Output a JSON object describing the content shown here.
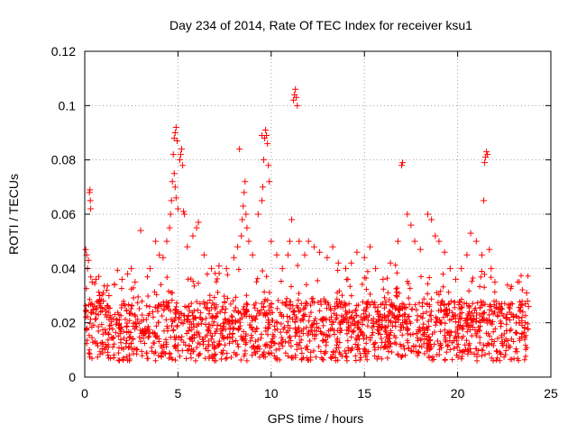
{
  "chart_data": {
    "type": "scatter",
    "title": "Day 234 of 2014, Rate Of TEC Index for receiver ksu1",
    "xlabel": "GPS time / hours",
    "ylabel": "ROTI / TECUs",
    "xlim": [
      0,
      25
    ],
    "ylim": [
      0,
      0.12
    ],
    "xticks": [
      0,
      5,
      10,
      15,
      20,
      25
    ],
    "xtick_labels": [
      "0",
      "5",
      "10",
      "15",
      "20",
      "25"
    ],
    "yticks": [
      0,
      0.02,
      0.04,
      0.06,
      0.08,
      0.1,
      0.12
    ],
    "ytick_labels": [
      "0",
      "0.02",
      "0.04",
      "0.06",
      "0.08",
      "0.1",
      "0.12"
    ],
    "grid": true,
    "marker": "+",
    "color": "#ff0000",
    "series": [
      {
        "name": "ROTI",
        "points": [
          [
            0.05,
            0.047
          ],
          [
            0.1,
            0.045
          ],
          [
            0.15,
            0.04
          ],
          [
            0.2,
            0.043
          ],
          [
            0.25,
            0.068
          ],
          [
            0.28,
            0.069
          ],
          [
            0.3,
            0.065
          ],
          [
            0.32,
            0.062
          ],
          [
            0.4,
            0.035
          ],
          [
            0.6,
            0.036
          ],
          [
            0.8,
            0.03
          ],
          [
            1.0,
            0.028
          ],
          [
            1.3,
            0.03
          ],
          [
            1.6,
            0.034
          ],
          [
            2.0,
            0.036
          ],
          [
            2.3,
            0.038
          ],
          [
            2.5,
            0.04
          ],
          [
            2.7,
            0.035
          ],
          [
            3.0,
            0.054
          ],
          [
            3.5,
            0.04
          ],
          [
            3.8,
            0.05
          ],
          [
            4.0,
            0.045
          ],
          [
            4.2,
            0.044
          ],
          [
            4.4,
            0.05
          ],
          [
            4.55,
            0.055
          ],
          [
            4.6,
            0.06
          ],
          [
            4.65,
            0.065
          ],
          [
            4.7,
            0.072
          ],
          [
            4.75,
            0.082
          ],
          [
            4.8,
            0.088
          ],
          [
            4.85,
            0.09
          ],
          [
            4.9,
            0.092
          ],
          [
            4.95,
            0.087
          ],
          [
            4.8,
            0.075
          ],
          [
            4.85,
            0.07
          ],
          [
            4.9,
            0.066
          ],
          [
            5.0,
            0.062
          ],
          [
            5.1,
            0.08
          ],
          [
            5.15,
            0.082
          ],
          [
            5.2,
            0.084
          ],
          [
            5.25,
            0.078
          ],
          [
            5.3,
            0.061
          ],
          [
            5.35,
            0.06
          ],
          [
            5.5,
            0.048
          ],
          [
            5.8,
            0.052
          ],
          [
            6.0,
            0.055
          ],
          [
            6.1,
            0.057
          ],
          [
            6.4,
            0.045
          ],
          [
            6.8,
            0.04
          ],
          [
            7.2,
            0.041
          ],
          [
            7.6,
            0.04
          ],
          [
            8.0,
            0.044
          ],
          [
            8.2,
            0.048
          ],
          [
            8.4,
            0.052
          ],
          [
            8.45,
            0.058
          ],
          [
            8.5,
            0.063
          ],
          [
            8.55,
            0.068
          ],
          [
            8.6,
            0.072
          ],
          [
            8.65,
            0.06
          ],
          [
            8.7,
            0.055
          ],
          [
            8.3,
            0.084
          ],
          [
            8.8,
            0.05
          ],
          [
            9.0,
            0.045
          ],
          [
            9.3,
            0.06
          ],
          [
            9.5,
            0.065
          ],
          [
            9.55,
            0.07
          ],
          [
            9.6,
            0.08
          ],
          [
            9.65,
            0.088
          ],
          [
            9.7,
            0.091
          ],
          [
            9.75,
            0.089
          ],
          [
            9.8,
            0.086
          ],
          [
            9.85,
            0.078
          ],
          [
            9.9,
            0.072
          ],
          [
            9.5,
            0.089
          ],
          [
            10.0,
            0.05
          ],
          [
            10.3,
            0.045
          ],
          [
            10.6,
            0.04
          ],
          [
            10.9,
            0.045
          ],
          [
            11.0,
            0.05
          ],
          [
            11.1,
            0.058
          ],
          [
            11.2,
            0.102
          ],
          [
            11.25,
            0.104
          ],
          [
            11.3,
            0.106
          ],
          [
            11.35,
            0.103
          ],
          [
            11.4,
            0.1
          ],
          [
            11.5,
            0.05
          ],
          [
            11.8,
            0.045
          ],
          [
            12.0,
            0.05
          ],
          [
            12.3,
            0.048
          ],
          [
            12.6,
            0.046
          ],
          [
            13.0,
            0.044
          ],
          [
            13.3,
            0.048
          ],
          [
            13.6,
            0.042
          ],
          [
            14.0,
            0.04
          ],
          [
            14.3,
            0.042
          ],
          [
            14.6,
            0.046
          ],
          [
            15.0,
            0.044
          ],
          [
            15.3,
            0.048
          ],
          [
            15.6,
            0.04
          ],
          [
            16.0,
            0.036
          ],
          [
            16.4,
            0.042
          ],
          [
            16.8,
            0.05
          ],
          [
            17.0,
            0.078
          ],
          [
            17.05,
            0.079
          ],
          [
            17.3,
            0.06
          ],
          [
            17.5,
            0.056
          ],
          [
            17.7,
            0.05
          ],
          [
            18.0,
            0.047
          ],
          [
            18.4,
            0.06
          ],
          [
            18.6,
            0.058
          ],
          [
            18.8,
            0.052
          ],
          [
            19.0,
            0.05
          ],
          [
            19.3,
            0.046
          ],
          [
            19.6,
            0.04
          ],
          [
            19.9,
            0.036
          ],
          [
            20.2,
            0.04
          ],
          [
            20.5,
            0.045
          ],
          [
            20.7,
            0.053
          ],
          [
            21.0,
            0.05
          ],
          [
            21.3,
            0.045
          ],
          [
            21.4,
            0.065
          ],
          [
            21.45,
            0.079
          ],
          [
            21.5,
            0.081
          ],
          [
            21.55,
            0.083
          ],
          [
            21.6,
            0.082
          ],
          [
            21.7,
            0.047
          ],
          [
            21.8,
            0.04
          ],
          [
            22.0,
            0.035
          ],
          [
            22.3,
            0.025
          ],
          [
            22.6,
            0.022
          ],
          [
            23.0,
            0.022
          ],
          [
            23.3,
            0.02
          ],
          [
            23.5,
            0.024
          ],
          [
            23.7,
            0.031
          ],
          [
            23.75,
            0.028
          ],
          [
            23.8,
            0.026
          ]
        ]
      }
    ]
  }
}
